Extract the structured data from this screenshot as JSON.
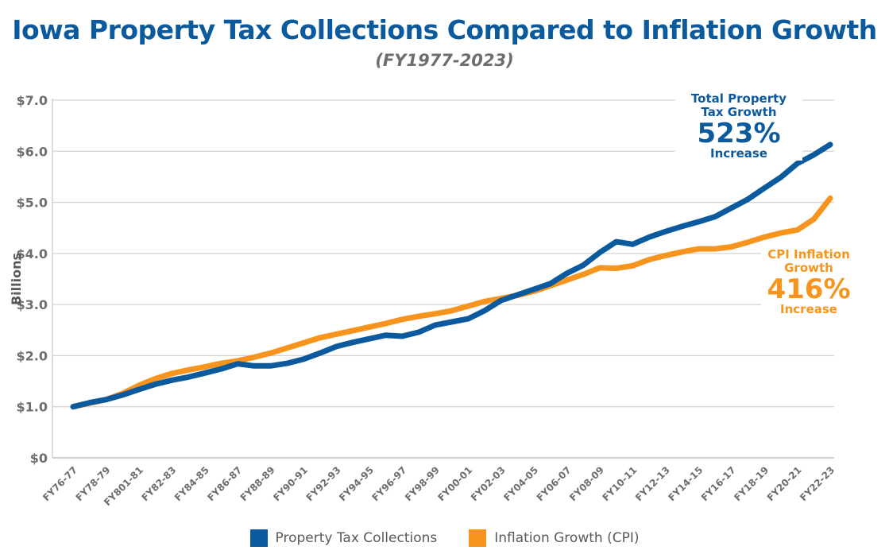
{
  "chart_data": {
    "type": "line",
    "title": "Iowa Property Tax Collections Compared to Inflation Growth",
    "subtitle": "(FY1977-2023)",
    "ylabel": "Billions",
    "xlabel": "",
    "ylim": [
      0,
      7
    ],
    "yticks": [
      "$0",
      "$1.0",
      "$2.0",
      "$3.0",
      "$4.0",
      "$5.0",
      "$6.0",
      "$7.0"
    ],
    "grid": true,
    "legend_position": "bottom",
    "xtick_labels": [
      "FY76-77",
      "FY78-79",
      "FY801-81",
      "FY82-83",
      "FY84-85",
      "FY86-87",
      "FY88-89",
      "FY90-91",
      "FY92-93",
      "FY94-95",
      "FY96-97",
      "FY98-99",
      "FY00-01",
      "FY02-03",
      "FY04-05",
      "FY06-07",
      "FY08-09",
      "FY10-11",
      "FY12-13",
      "FY14-15",
      "FY16-17",
      "FY18-19",
      "FY20-21",
      "FY22-23"
    ],
    "series": [
      {
        "name": "Property Tax Collections",
        "color": "#0b5a9e",
        "values": [
          1.0,
          1.08,
          1.14,
          1.23,
          1.34,
          1.44,
          1.52,
          1.58,
          1.66,
          1.74,
          1.84,
          1.8,
          1.8,
          1.85,
          1.93,
          2.05,
          2.18,
          2.26,
          2.33,
          2.4,
          2.38,
          2.46,
          2.6,
          2.66,
          2.72,
          2.88,
          3.08,
          3.19,
          3.3,
          3.41,
          3.61,
          3.77,
          4.02,
          4.23,
          4.18,
          4.32,
          4.43,
          4.53,
          4.62,
          4.72,
          4.89,
          5.06,
          5.28,
          5.49,
          5.76,
          5.93,
          6.13
        ]
      },
      {
        "name": "Inflation Growth (CPI)",
        "color": "#f7941d",
        "values": [
          1.0,
          1.07,
          1.14,
          1.26,
          1.42,
          1.55,
          1.65,
          1.72,
          1.78,
          1.85,
          1.9,
          1.97,
          2.05,
          2.15,
          2.25,
          2.35,
          2.42,
          2.49,
          2.56,
          2.63,
          2.71,
          2.77,
          2.82,
          2.88,
          2.97,
          3.06,
          3.12,
          3.18,
          3.26,
          3.37,
          3.48,
          3.59,
          3.72,
          3.71,
          3.76,
          3.88,
          3.96,
          4.03,
          4.09,
          4.09,
          4.13,
          4.22,
          4.32,
          4.4,
          4.46,
          4.67,
          5.08
        ]
      }
    ],
    "annotations": [
      {
        "line1": "Total Property",
        "line2": "Tax Growth",
        "value": "523%",
        "line3": "Increase",
        "color": "#0b5a9e"
      },
      {
        "line1": "CPI Inflation",
        "line2": "Growth",
        "value": "416%",
        "line3": "Increase",
        "color": "#f7941d"
      }
    ]
  }
}
